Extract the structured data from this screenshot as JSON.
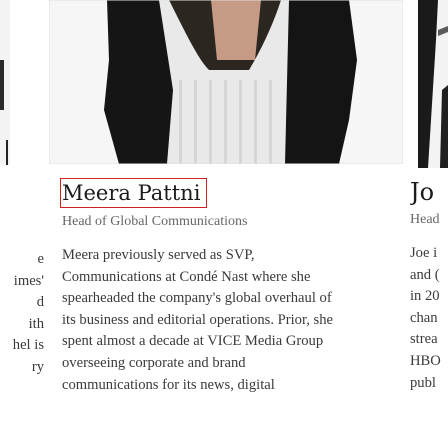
{
  "left_card": {
    "bio_lines": [
      "e",
      "imes'",
      "d",
      "ith",
      "hel is",
      "ry"
    ]
  },
  "center_card": {
    "name": "Meera Pattni",
    "title": "Head of Global Communications",
    "bio_lines": [
      "Meera previously served as SVP,",
      "Communications at Condé Nast where she",
      "spearheaded the company's global overhaul of",
      "its business and editorial operations. Prior, she",
      "spent almost a decade at VICE Media Group",
      "overseeing corporate and brand",
      "communications for its news, digital"
    ]
  },
  "right_card": {
    "name": "Jo",
    "title": "Head",
    "bio_lines": [
      "Joe i",
      "and (",
      "in 20",
      "chan",
      "strea",
      "HBO",
      "publ"
    ]
  }
}
